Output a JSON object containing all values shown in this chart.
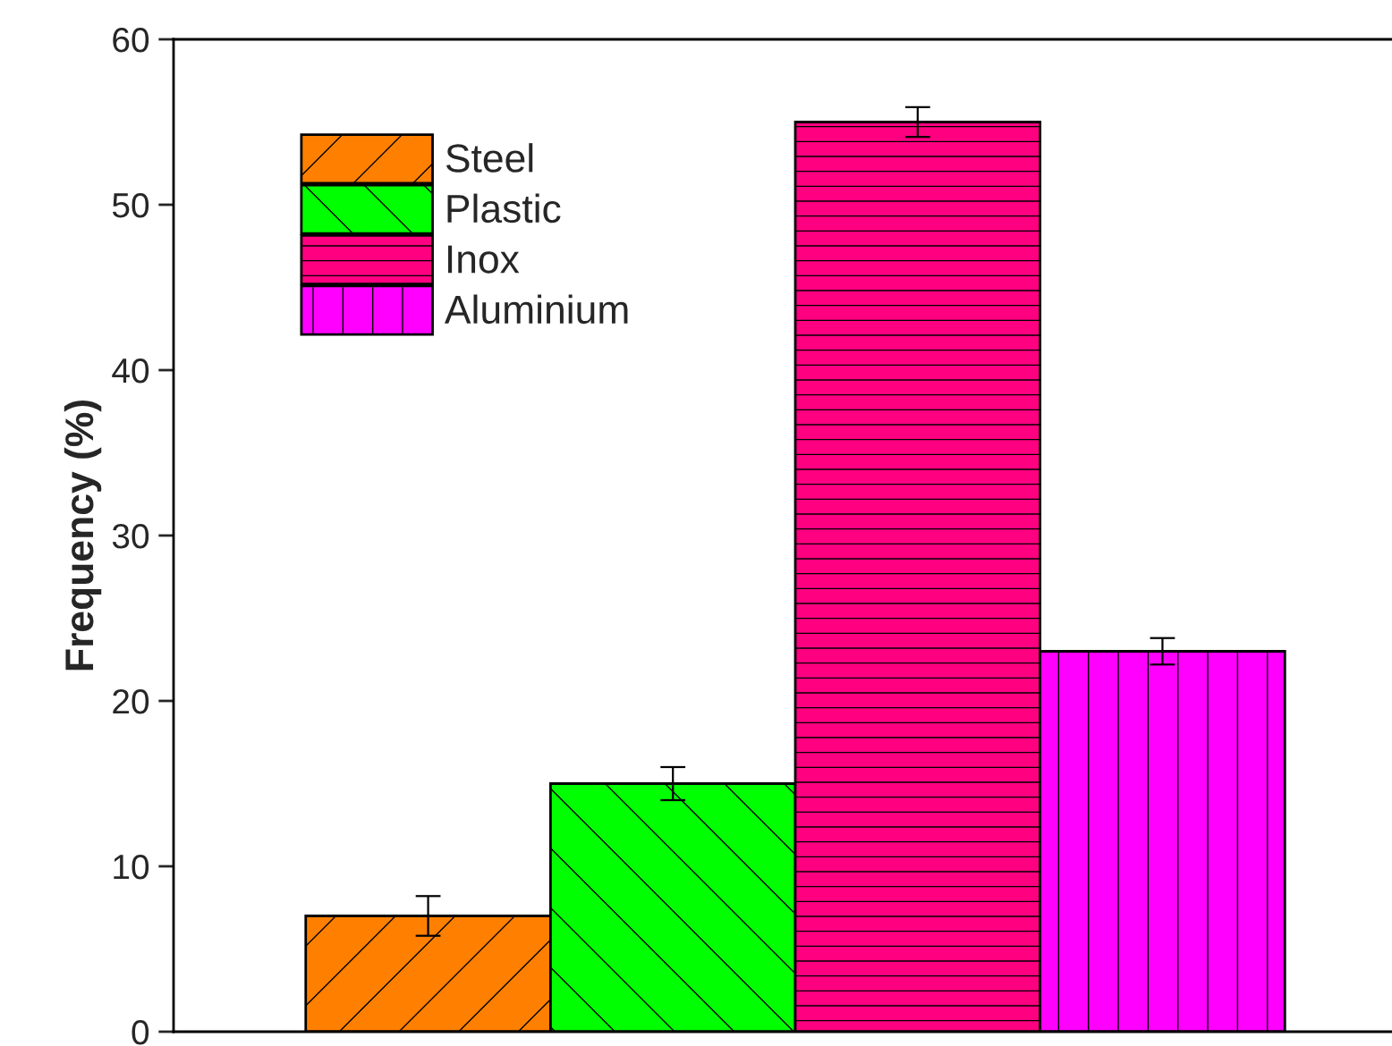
{
  "chart_data": {
    "type": "bar",
    "ylabel": "Frequency (%)",
    "categories": [
      null,
      null,
      null,
      null
    ],
    "series": [
      {
        "name": "Steel",
        "color": "#ff8000",
        "values": [
          7,
          null,
          null,
          null
        ],
        "errors": [
          1.2,
          null,
          null,
          null
        ]
      },
      {
        "name": "Plastic",
        "color": "#00ff00",
        "values": [
          null,
          15,
          null,
          null
        ],
        "errors": [
          null,
          1,
          null,
          null
        ]
      },
      {
        "name": "Inox",
        "color": "#ff0080",
        "values": [
          null,
          null,
          55,
          null
        ],
        "errors": [
          null,
          null,
          0.9,
          null
        ]
      },
      {
        "name": "Aluminium",
        "color": "#ff00ff",
        "values": [
          null,
          null,
          null,
          23
        ],
        "errors": [
          null,
          null,
          null,
          0.8
        ]
      }
    ],
    "ylim": [
      0,
      60
    ],
    "yticks": [
      0,
      10,
      20,
      30,
      40,
      50,
      60
    ],
    "legend": "top left",
    "grid": false
  }
}
